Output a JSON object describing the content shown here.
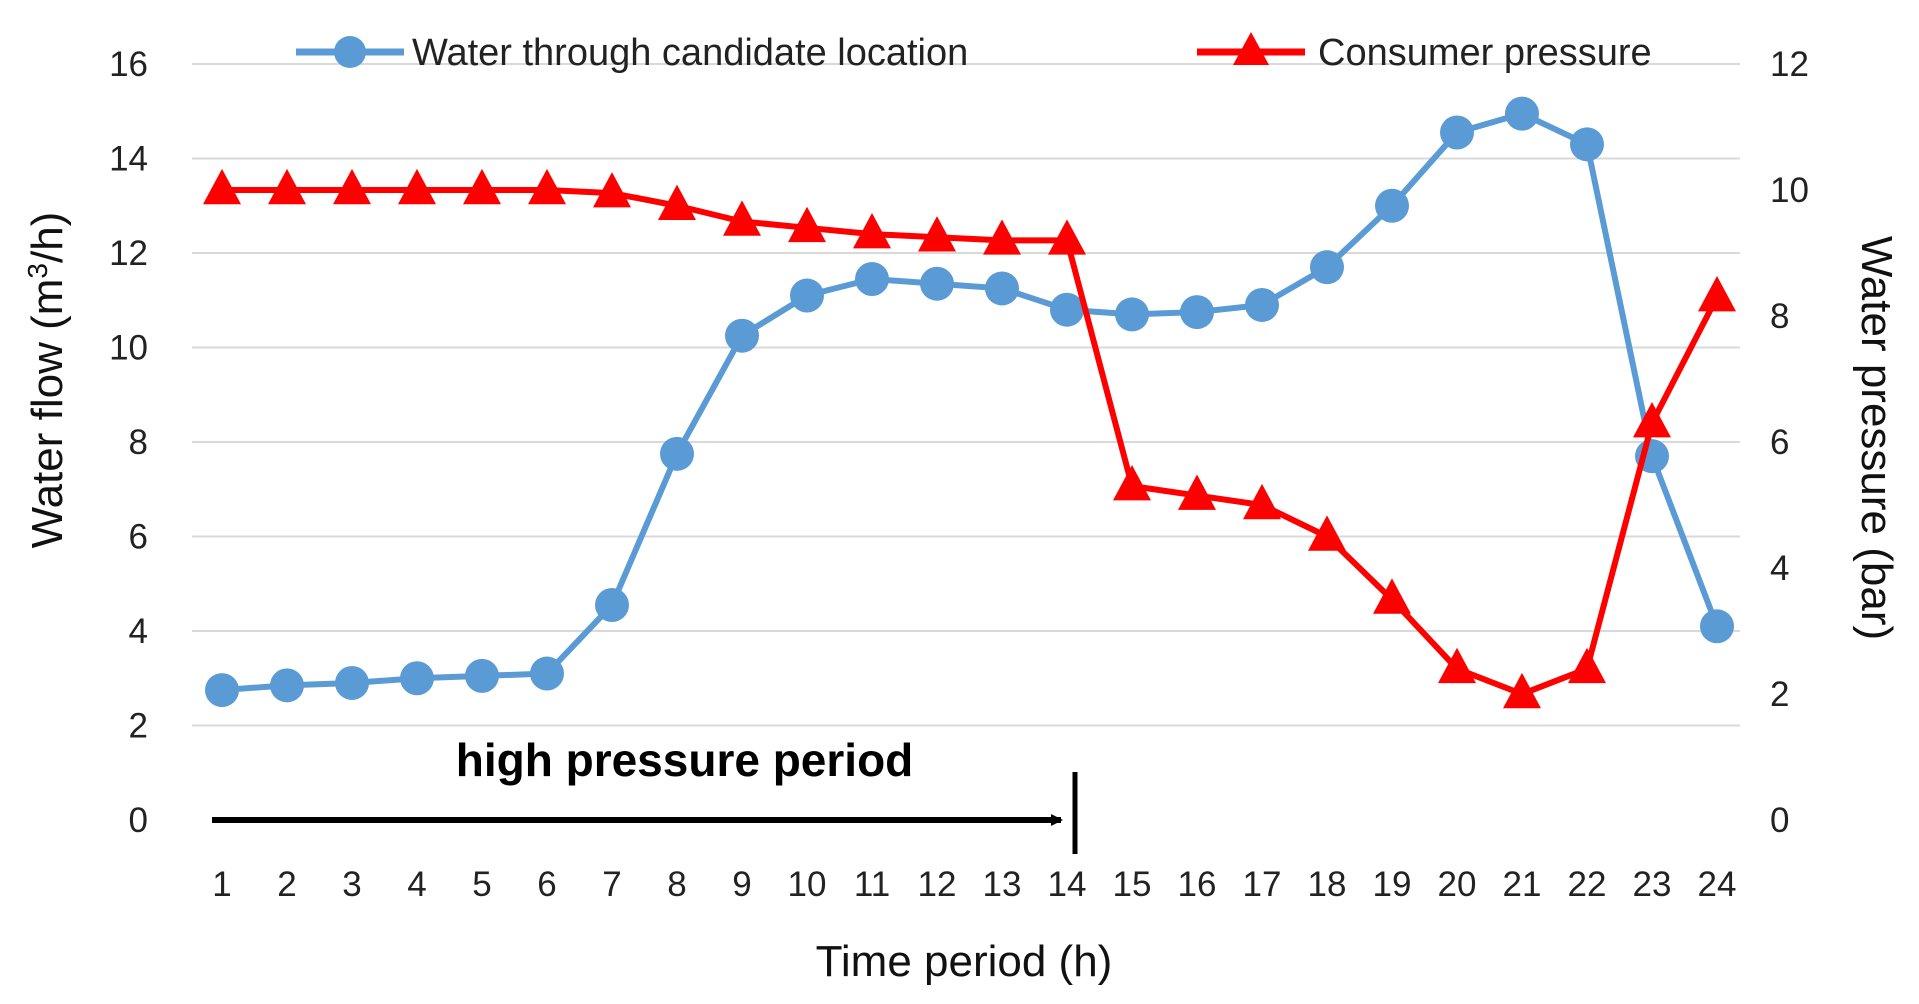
{
  "chart_data": {
    "type": "line",
    "title": "",
    "x": [
      1,
      2,
      3,
      4,
      5,
      6,
      7,
      8,
      9,
      10,
      11,
      12,
      13,
      14,
      15,
      16,
      17,
      18,
      19,
      20,
      21,
      22,
      23,
      24
    ],
    "x_tick_labels": [
      "1",
      "2",
      "3",
      "4",
      "5",
      "6",
      "7",
      "8",
      "9",
      "10",
      "11",
      "12",
      "13",
      "14",
      "15",
      "16",
      "17",
      "18",
      "19",
      "20",
      "21",
      "22",
      "23",
      "24"
    ],
    "xlabel": "Time period (h)",
    "ylabel_left": {
      "prefix": "Water flow (m",
      "sup": "3",
      "suffix": "/h)"
    },
    "ylabel_right": "Water pressure (bar)",
    "ylim_left": [
      0,
      16
    ],
    "yticks_left": [
      "0",
      "2",
      "4",
      "6",
      "8",
      "10",
      "12",
      "14",
      "16"
    ],
    "ylim_right": [
      0,
      12
    ],
    "yticks_right": [
      "0",
      "2",
      "4",
      "6",
      "8",
      "10",
      "12"
    ],
    "grid": true,
    "legend_position": "top",
    "series": [
      {
        "name": "Water through candidate location",
        "axis": "left",
        "color": "#5b9bd5",
        "marker": "circle",
        "values": [
          2.75,
          2.85,
          2.9,
          3.0,
          3.05,
          3.1,
          4.55,
          7.75,
          10.25,
          11.1,
          11.45,
          11.35,
          11.25,
          10.8,
          10.7,
          10.75,
          10.9,
          11.7,
          13.0,
          14.55,
          14.95,
          14.3,
          7.7,
          4.1
        ]
      },
      {
        "name": "Consumer pressure",
        "axis": "right",
        "color": "#ff0000",
        "marker": "triangle",
        "values": [
          10.0,
          10.0,
          10.0,
          10.0,
          10.0,
          10.0,
          9.95,
          9.75,
          9.5,
          9.4,
          9.3,
          9.25,
          9.2,
          9.2,
          5.3,
          5.15,
          5.0,
          4.5,
          3.5,
          2.4,
          2.0,
          2.4,
          6.3,
          8.3
        ]
      }
    ],
    "annotations": [
      {
        "text": "high pressure period",
        "from_x": 1,
        "to_x": 14
      }
    ]
  }
}
